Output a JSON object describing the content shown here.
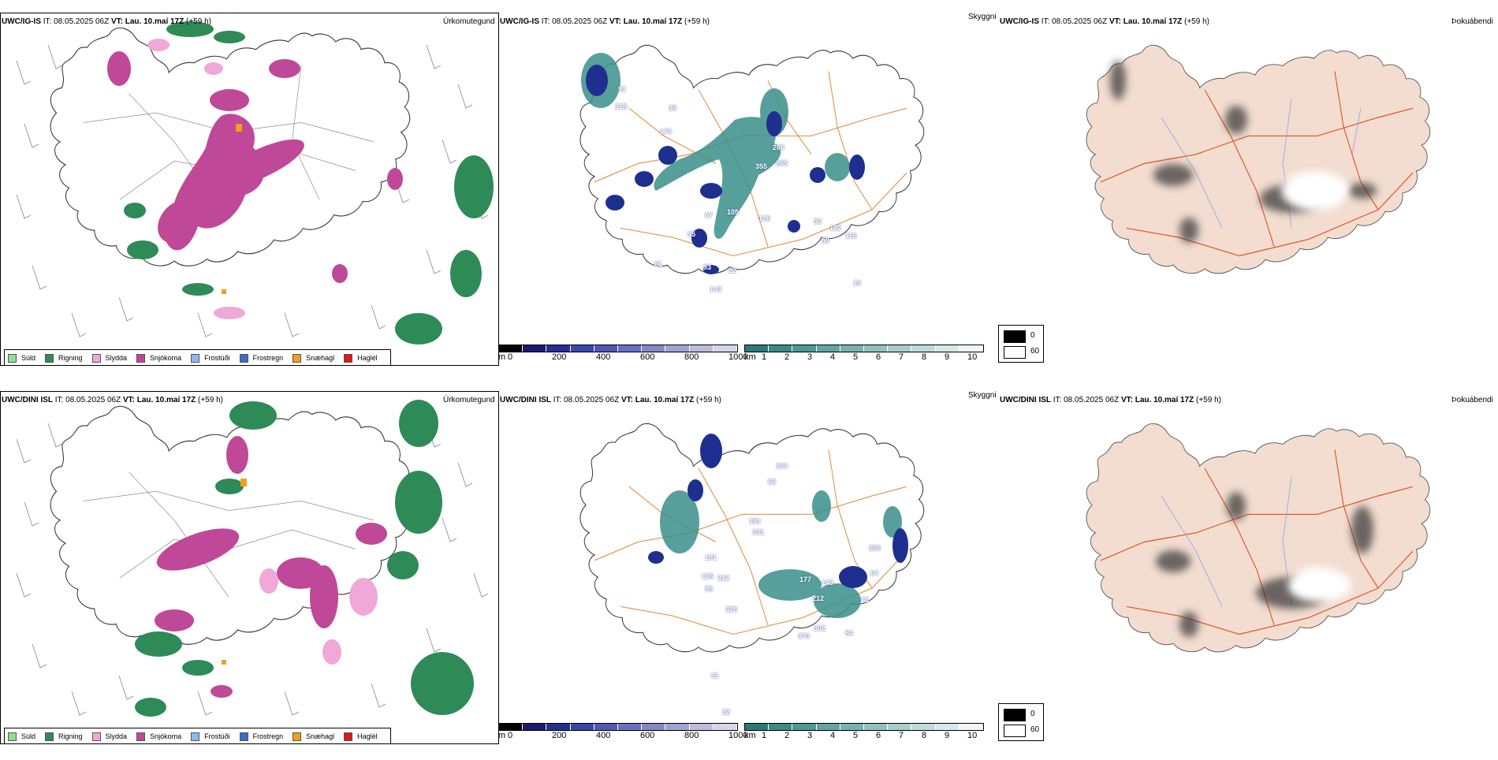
{
  "colors": {
    "suld": "#8ee08e",
    "rigning": "#2e8b57",
    "slydda": "#f0a8d8",
    "snjokoma": "#c04898",
    "frostudi": "#8cb8f0",
    "frostregn": "#3a6ec8",
    "snaehagl": "#f0a020",
    "haglel": "#e01818",
    "roads": "#e08a3a",
    "land_fog": "#f2ddd0",
    "teal": "#3a8f8a",
    "navy": "#1f2f8f"
  },
  "rows": [
    {
      "model": "UWC/IG-IS",
      "it_label": "IT:",
      "it_value": "08.05.2025 06Z",
      "vt_label": "VT:",
      "vt_value": "Lau. 10.maí 17Z",
      "lead": "(+59 h)",
      "labels": [
        {
          "text": "91"
        },
        {
          "text": "218"
        },
        {
          "text": "38"
        },
        {
          "text": "176"
        },
        {
          "text": "266"
        },
        {
          "text": "355"
        },
        {
          "text": "265"
        },
        {
          "text": "105"
        },
        {
          "text": "67"
        },
        {
          "text": "95"
        },
        {
          "text": "126"
        },
        {
          "text": "50"
        },
        {
          "text": "122"
        },
        {
          "text": "59"
        },
        {
          "text": "116"
        },
        {
          "text": "81"
        },
        {
          "text": "93"
        },
        {
          "text": "143"
        },
        {
          "text": "22"
        },
        {
          "text": "19"
        }
      ]
    },
    {
      "model": "UWC/DINI ISL",
      "it_label": "IT:",
      "it_value": "08.05.2025 06Z",
      "vt_label": "VT:",
      "vt_value": "Lau. 10.maí 17Z",
      "lead": "(+59 h)",
      "labels": [
        {
          "text": "194"
        },
        {
          "text": "68"
        },
        {
          "text": "191"
        },
        {
          "text": "301"
        },
        {
          "text": "181"
        },
        {
          "text": "126"
        },
        {
          "text": "212"
        },
        {
          "text": "95"
        },
        {
          "text": "335"
        },
        {
          "text": "177"
        },
        {
          "text": "143"
        },
        {
          "text": "212"
        },
        {
          "text": "73"
        },
        {
          "text": "84"
        },
        {
          "text": "302"
        },
        {
          "text": "370"
        },
        {
          "text": "61"
        },
        {
          "text": "226"
        },
        {
          "text": "64"
        },
        {
          "text": "22"
        }
      ]
    }
  ],
  "titles": {
    "precip_type": "Úrkomutegund",
    "cloud_ceiling": "Skyggni",
    "fog": "Þokuábendi"
  },
  "precip_legend": [
    {
      "label": "Súld",
      "color_key": "suld"
    },
    {
      "label": "Rigning",
      "color_key": "rigning"
    },
    {
      "label": "Slydda",
      "color_key": "slydda"
    },
    {
      "label": "Snjókoma",
      "color_key": "snjokoma"
    },
    {
      "label": "Frostúði",
      "color_key": "frostudi"
    },
    {
      "label": "Frostregn",
      "color_key": "frostregn"
    },
    {
      "label": "Snæhagl",
      "color_key": "snaehagl"
    },
    {
      "label": "Haglél",
      "color_key": "haglel"
    }
  ],
  "ceiling_colorbar": {
    "unit": "m",
    "ticks": [
      "0",
      "200",
      "400",
      "600",
      "800",
      "1000"
    ],
    "colors": [
      "#000000",
      "#1a1a6e",
      "#252f90",
      "#3a46a8",
      "#5058b6",
      "#6a70c0",
      "#8488c8",
      "#a0a2d2",
      "#bcbcdc",
      "#d6d6ea"
    ]
  },
  "visibility_colorbar": {
    "unit": "km",
    "ticks": [
      "1",
      "2",
      "3",
      "4",
      "5",
      "6",
      "7",
      "8",
      "9",
      "10"
    ],
    "colors": [
      "#2a7a78",
      "#3a8a86",
      "#4d9894",
      "#62a6a2",
      "#79b3b0",
      "#90c1be",
      "#a8cecb",
      "#c0dcda",
      "#d8eae8",
      "#f0f6f6"
    ]
  },
  "fog_legend": {
    "high": "0",
    "low": "60"
  }
}
